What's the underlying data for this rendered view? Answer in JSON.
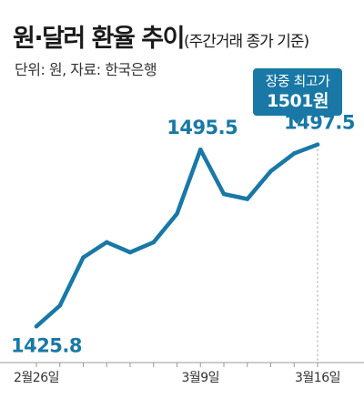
{
  "title": {
    "main": "원·달러 환율 추이",
    "sub": "(주간거래 종가 기준)"
  },
  "source": "단위: 원, 자료: 한국은행",
  "annotation": {
    "line1": "장중 최고가",
    "line2": "1501원"
  },
  "colors": {
    "line": "#1978a6",
    "label": "#1978a6",
    "axis": "#999999",
    "annotation_bg": "#1978a6"
  },
  "chart_data": {
    "type": "line",
    "title": "원·달러 환율 추이",
    "subtitle": "(주간거래 종가 기준)",
    "unit": "원",
    "x_tick_labels": [
      "2월26일",
      "3월9일",
      "3월16일"
    ],
    "series": [
      {
        "values": [
          1425.8,
          1434,
          1453,
          1459,
          1455,
          1459,
          1470.2,
          1495.5,
          1478,
          1476,
          1487,
          1494,
          1497.5
        ]
      }
    ],
    "data_labels": [
      {
        "index": 0,
        "text": "1425.8"
      },
      {
        "index": 7,
        "text": "1495.5"
      },
      {
        "index": 12,
        "text": "1497.5"
      }
    ],
    "ylim": [
      1418,
      1506
    ],
    "grid": false,
    "legend": "none"
  }
}
